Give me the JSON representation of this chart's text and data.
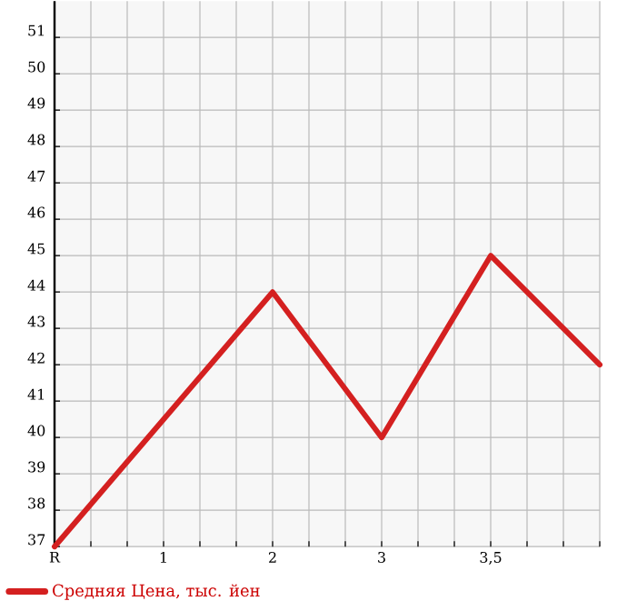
{
  "chart_data": {
    "type": "line",
    "categories": [
      "R",
      "1",
      "2",
      "3",
      "3,5",
      null
    ],
    "series": [
      {
        "name": "Средняя Цена, тыс. йен",
        "color": "#d42020",
        "values": [
          37,
          40.5,
          44,
          40,
          45,
          42
        ]
      }
    ],
    "ylim": [
      37,
      52
    ],
    "yticks": [
      37,
      38,
      39,
      40,
      41,
      42,
      43,
      44,
      45,
      46,
      47,
      48,
      49,
      50,
      51
    ],
    "grid": true,
    "legend": "bottom left",
    "marker": "none",
    "line_style": "solid"
  }
}
